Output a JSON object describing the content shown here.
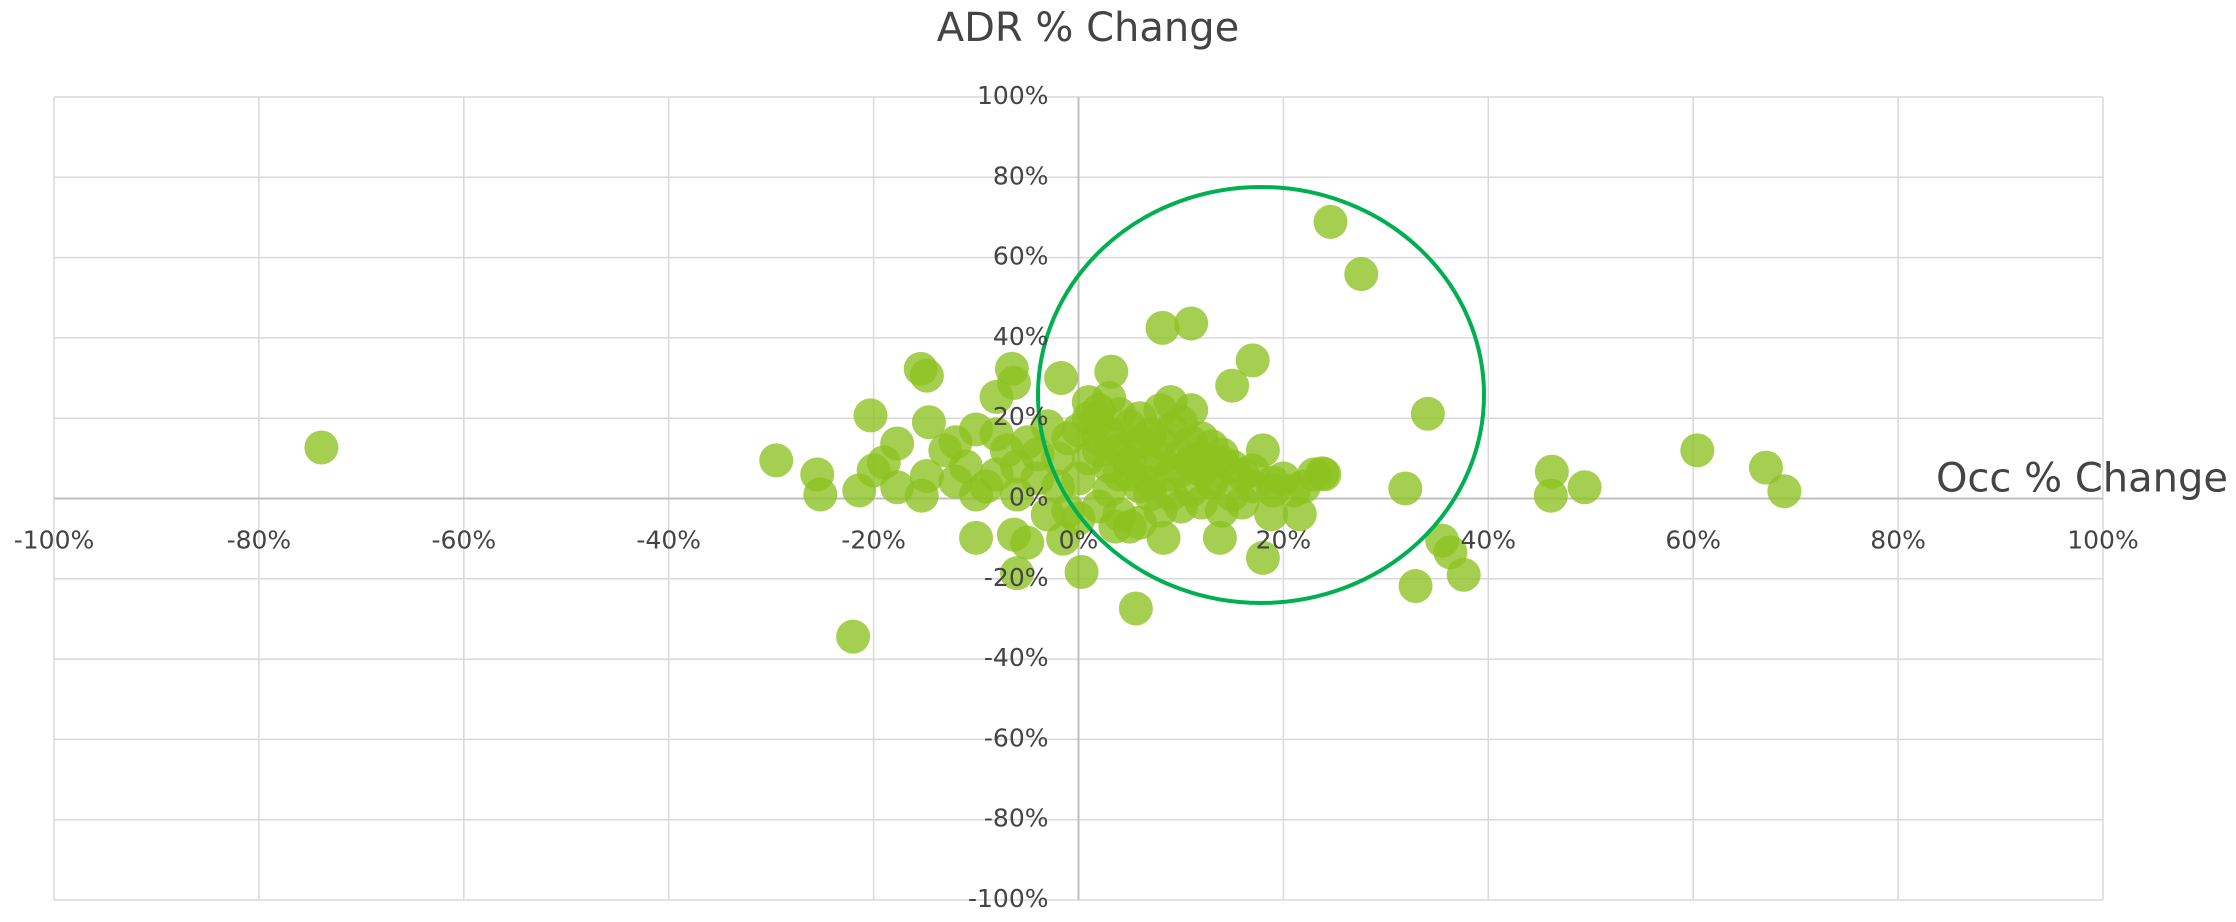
{
  "chart_data": {
    "type": "scatter",
    "title": "ADR % Change",
    "x_label": "Occ % Change",
    "color": "#8cc11f",
    "grid": true,
    "xlim": [
      -100,
      100
    ],
    "ylim": [
      -100,
      100
    ],
    "xticks": [
      {
        "value": -100,
        "label": "-100%"
      },
      {
        "value": -80,
        "label": "-80%"
      },
      {
        "value": -60,
        "label": "-60%"
      },
      {
        "value": -40,
        "label": "-40%"
      },
      {
        "value": -20,
        "label": "-20%"
      },
      {
        "value": 0,
        "label": "0%"
      },
      {
        "value": 20,
        "label": "20%"
      },
      {
        "value": 40,
        "label": "40%"
      },
      {
        "value": 60,
        "label": "60%"
      },
      {
        "value": 80,
        "label": "80%"
      },
      {
        "value": 100,
        "label": "100%"
      }
    ],
    "yticks": [
      {
        "value": -100,
        "label": "-100%"
      },
      {
        "value": -80,
        "label": "-80%"
      },
      {
        "value": -60,
        "label": "-60%"
      },
      {
        "value": -40,
        "label": "-40%"
      },
      {
        "value": -20,
        "label": "-20%"
      },
      {
        "value": 0,
        "label": "0%"
      },
      {
        "value": 20,
        "label": "20%"
      },
      {
        "value": 40,
        "label": "40%"
      },
      {
        "value": 60,
        "label": "60%"
      },
      {
        "value": 80,
        "label": "80%"
      },
      {
        "value": 100,
        "label": "100%"
      }
    ],
    "x": [
      -73.9,
      -29.5,
      -25.5,
      -25.2,
      -21.4,
      -22,
      -20.3,
      -20,
      -19,
      -17.7,
      -17.7,
      -15.4,
      -14.8,
      -14.6,
      -15.3,
      -14.8,
      -13,
      -12,
      -10,
      -10,
      -8,
      -6.5,
      -6.3,
      -6,
      -6.3,
      -1.7,
      0.3,
      1.8,
      3.2,
      5.6,
      8.2,
      11,
      8.3,
      13.8,
      15,
      17,
      18,
      18.8,
      21.6,
      24.6,
      27.6,
      23.8,
      31.9,
      32.9,
      34.1,
      35.5,
      36.3,
      37.6,
      46.2,
      46.1,
      49.4,
      60.4,
      67.1,
      68.9,
      3.6,
      5,
      -5,
      -1.5,
      0,
      1,
      2,
      3,
      4,
      5,
      6,
      7,
      8,
      9,
      10,
      11,
      12,
      13,
      14,
      15,
      16,
      17,
      18,
      19,
      20,
      22,
      1,
      2,
      3,
      4,
      5,
      6,
      7,
      8,
      9,
      10,
      11,
      12,
      13,
      14,
      -1,
      -2,
      -3,
      -4,
      -5,
      -6,
      -7,
      -8,
      -9,
      -3,
      -1,
      0,
      2,
      4,
      6,
      8,
      10,
      12,
      14,
      16,
      3,
      5,
      7,
      9,
      11,
      13,
      15,
      17,
      19,
      0,
      1,
      2,
      3,
      4,
      5,
      6,
      7,
      8,
      9,
      10,
      11,
      12,
      -2,
      -4,
      -6,
      -8,
      -10,
      -11,
      -12,
      21,
      23,
      24
    ],
    "values": [
      12.7,
      9.5,
      6,
      1,
      2,
      -34.4,
      20.7,
      7,
      9,
      13.7,
      2.8,
      32.3,
      30.6,
      19,
      0.7,
      5.6,
      12,
      4.2,
      -9.8,
      17.2,
      25.3,
      32.3,
      28.8,
      -18.6,
      -9,
      30,
      -18.3,
      19.3,
      31.6,
      -27.4,
      42.5,
      43.6,
      -9.8,
      -9.8,
      28.1,
      34.4,
      -14.8,
      -3.9,
      -3.9,
      68.9,
      55.9,
      6.3,
      2.5,
      -21.8,
      21.1,
      -10.5,
      -13.4,
      -19,
      6.7,
      0.7,
      2.8,
      12,
      7.7,
      1.8,
      -7,
      -7,
      -11,
      -10,
      5,
      10,
      15,
      8,
      12,
      18,
      3,
      9,
      14,
      6,
      11,
      2,
      7,
      4,
      9,
      1,
      6,
      3,
      12,
      2,
      5,
      3,
      20,
      22,
      25,
      21,
      13,
      20,
      16,
      22,
      24,
      19,
      22,
      15,
      13,
      11,
      15,
      10,
      18,
      5,
      14,
      8,
      12,
      16,
      3,
      -4,
      -3,
      -5,
      -2,
      -4,
      -6,
      -3,
      -2,
      -1,
      -3,
      -1,
      2,
      6,
      4,
      1,
      9,
      5,
      8,
      7,
      4,
      17,
      24,
      12,
      16,
      6,
      9,
      14,
      1,
      10,
      17,
      7,
      14,
      10,
      3,
      11,
      1,
      6,
      1,
      8,
      14,
      2,
      6,
      6
    ]
  }
}
